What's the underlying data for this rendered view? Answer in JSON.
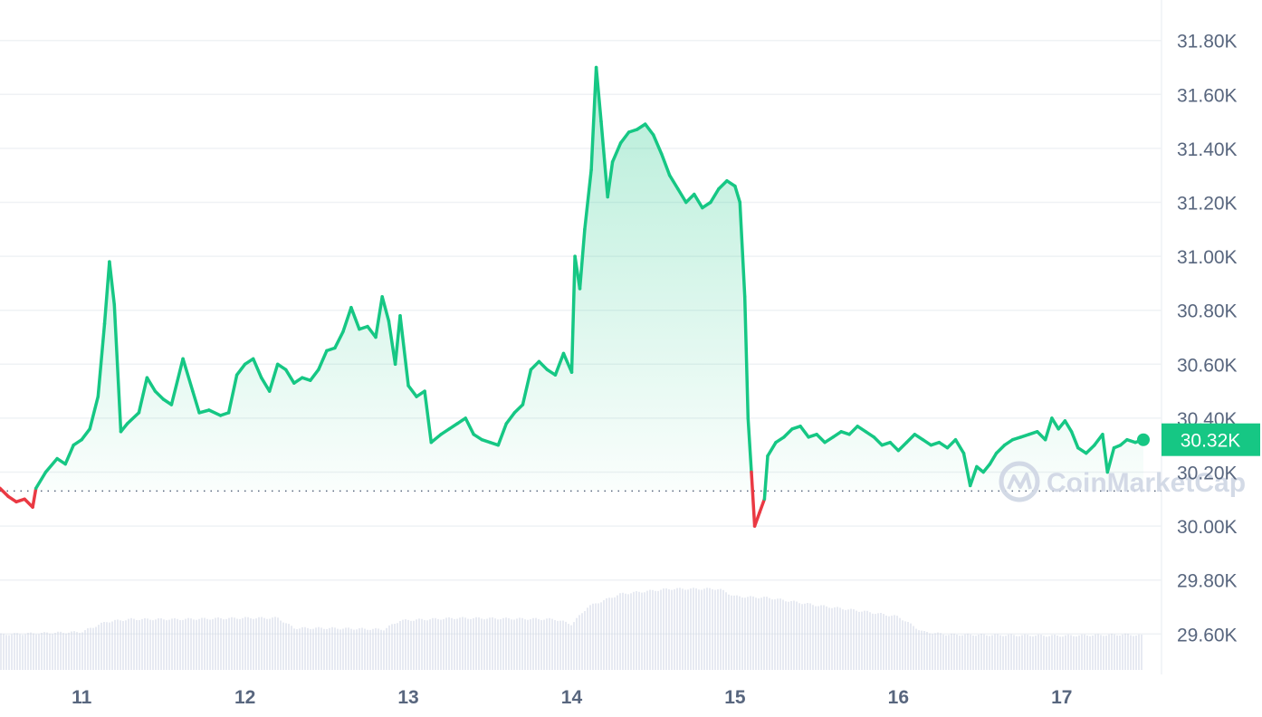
{
  "chart_data": {
    "type": "area",
    "y_ticks": [
      "31.80K",
      "31.60K",
      "31.40K",
      "31.20K",
      "31.00K",
      "30.80K",
      "30.60K",
      "30.40K",
      "30.20K",
      "30.00K",
      "29.80K",
      "29.60K"
    ],
    "x_ticks": [
      "11",
      "12",
      "13",
      "14",
      "15",
      "16",
      "17"
    ],
    "ylim": [
      29450,
      31950
    ],
    "xlim": [
      10.5,
      17.55
    ],
    "baseline": 30130,
    "current_price_label": "30.32K",
    "current_price": 30320,
    "colors": {
      "up": "#16c784",
      "down": "#ea3943",
      "grid": "#eff2f5",
      "text": "#58667e",
      "volume": "#cfd6e4"
    },
    "watermark": "CoinMarketCap",
    "series": [
      {
        "values": [
          [
            10.5,
            30140
          ],
          [
            10.55,
            30110
          ],
          [
            10.6,
            30090
          ],
          [
            10.65,
            30100
          ],
          [
            10.7,
            30070
          ],
          [
            10.72,
            30140
          ],
          [
            10.78,
            30200
          ],
          [
            10.85,
            30250
          ],
          [
            10.9,
            30230
          ],
          [
            10.95,
            30300
          ],
          [
            11.0,
            30320
          ],
          [
            11.05,
            30360
          ],
          [
            11.1,
            30480
          ],
          [
            11.14,
            30750
          ],
          [
            11.17,
            30980
          ],
          [
            11.2,
            30820
          ],
          [
            11.24,
            30350
          ],
          [
            11.28,
            30380
          ],
          [
            11.35,
            30420
          ],
          [
            11.4,
            30550
          ],
          [
            11.45,
            30500
          ],
          [
            11.5,
            30470
          ],
          [
            11.55,
            30450
          ],
          [
            11.62,
            30620
          ],
          [
            11.68,
            30500
          ],
          [
            11.72,
            30420
          ],
          [
            11.78,
            30430
          ],
          [
            11.85,
            30410
          ],
          [
            11.9,
            30420
          ],
          [
            11.95,
            30560
          ],
          [
            12.0,
            30600
          ],
          [
            12.05,
            30620
          ],
          [
            12.1,
            30550
          ],
          [
            12.15,
            30500
          ],
          [
            12.2,
            30600
          ],
          [
            12.25,
            30580
          ],
          [
            12.3,
            30530
          ],
          [
            12.35,
            30550
          ],
          [
            12.4,
            30540
          ],
          [
            12.45,
            30580
          ],
          [
            12.5,
            30650
          ],
          [
            12.55,
            30660
          ],
          [
            12.6,
            30720
          ],
          [
            12.65,
            30810
          ],
          [
            12.7,
            30730
          ],
          [
            12.75,
            30740
          ],
          [
            12.8,
            30700
          ],
          [
            12.84,
            30850
          ],
          [
            12.88,
            30760
          ],
          [
            12.92,
            30600
          ],
          [
            12.95,
            30780
          ],
          [
            13.0,
            30520
          ],
          [
            13.05,
            30480
          ],
          [
            13.1,
            30500
          ],
          [
            13.14,
            30310
          ],
          [
            13.2,
            30340
          ],
          [
            13.25,
            30360
          ],
          [
            13.3,
            30380
          ],
          [
            13.35,
            30400
          ],
          [
            13.4,
            30340
          ],
          [
            13.45,
            30320
          ],
          [
            13.5,
            30310
          ],
          [
            13.55,
            30300
          ],
          [
            13.6,
            30380
          ],
          [
            13.65,
            30420
          ],
          [
            13.7,
            30450
          ],
          [
            13.75,
            30580
          ],
          [
            13.8,
            30610
          ],
          [
            13.85,
            30580
          ],
          [
            13.9,
            30560
          ],
          [
            13.95,
            30640
          ],
          [
            14.0,
            30570
          ],
          [
            14.02,
            31000
          ],
          [
            14.05,
            30880
          ],
          [
            14.08,
            31100
          ],
          [
            14.12,
            31320
          ],
          [
            14.15,
            31700
          ],
          [
            14.18,
            31500
          ],
          [
            14.22,
            31220
          ],
          [
            14.25,
            31350
          ],
          [
            14.3,
            31420
          ],
          [
            14.35,
            31460
          ],
          [
            14.4,
            31470
          ],
          [
            14.45,
            31490
          ],
          [
            14.5,
            31450
          ],
          [
            14.55,
            31380
          ],
          [
            14.6,
            31300
          ],
          [
            14.65,
            31250
          ],
          [
            14.7,
            31200
          ],
          [
            14.75,
            31230
          ],
          [
            14.8,
            31180
          ],
          [
            14.85,
            31200
          ],
          [
            14.9,
            31250
          ],
          [
            14.95,
            31280
          ],
          [
            15.0,
            31260
          ],
          [
            15.03,
            31200
          ],
          [
            15.06,
            30850
          ],
          [
            15.08,
            30400
          ],
          [
            15.1,
            30200
          ],
          [
            15.12,
            30000
          ],
          [
            15.15,
            30050
          ],
          [
            15.18,
            30100
          ],
          [
            15.2,
            30260
          ],
          [
            15.25,
            30310
          ],
          [
            15.3,
            30330
          ],
          [
            15.35,
            30360
          ],
          [
            15.4,
            30370
          ],
          [
            15.45,
            30330
          ],
          [
            15.5,
            30340
          ],
          [
            15.55,
            30310
          ],
          [
            15.6,
            30330
          ],
          [
            15.65,
            30350
          ],
          [
            15.7,
            30340
          ],
          [
            15.75,
            30370
          ],
          [
            15.8,
            30350
          ],
          [
            15.85,
            30330
          ],
          [
            15.9,
            30300
          ],
          [
            15.95,
            30310
          ],
          [
            16.0,
            30280
          ],
          [
            16.05,
            30310
          ],
          [
            16.1,
            30340
          ],
          [
            16.15,
            30320
          ],
          [
            16.2,
            30300
          ],
          [
            16.25,
            30310
          ],
          [
            16.3,
            30290
          ],
          [
            16.35,
            30320
          ],
          [
            16.4,
            30270
          ],
          [
            16.44,
            30150
          ],
          [
            16.48,
            30220
          ],
          [
            16.52,
            30200
          ],
          [
            16.56,
            30230
          ],
          [
            16.6,
            30270
          ],
          [
            16.65,
            30300
          ],
          [
            16.7,
            30320
          ],
          [
            16.75,
            30330
          ],
          [
            16.8,
            30340
          ],
          [
            16.85,
            30350
          ],
          [
            16.9,
            30320
          ],
          [
            16.94,
            30400
          ],
          [
            16.98,
            30360
          ],
          [
            17.02,
            30390
          ],
          [
            17.06,
            30350
          ],
          [
            17.1,
            30290
          ],
          [
            17.15,
            30270
          ],
          [
            17.2,
            30300
          ],
          [
            17.25,
            30340
          ],
          [
            17.28,
            30200
          ],
          [
            17.32,
            30290
          ],
          [
            17.36,
            30300
          ],
          [
            17.4,
            30320
          ],
          [
            17.45,
            30310
          ],
          [
            17.5,
            30320
          ]
        ]
      }
    ],
    "volume": [
      [
        10.5,
        0.28
      ],
      [
        11.0,
        0.3
      ],
      [
        11.15,
        0.38
      ],
      [
        11.3,
        0.4
      ],
      [
        11.6,
        0.4
      ],
      [
        12.0,
        0.41
      ],
      [
        12.2,
        0.41
      ],
      [
        12.3,
        0.33
      ],
      [
        12.5,
        0.33
      ],
      [
        12.85,
        0.32
      ],
      [
        12.95,
        0.39
      ],
      [
        13.3,
        0.41
      ],
      [
        13.9,
        0.4
      ],
      [
        14.0,
        0.36
      ],
      [
        14.1,
        0.5
      ],
      [
        14.3,
        0.6
      ],
      [
        14.6,
        0.64
      ],
      [
        14.9,
        0.64
      ],
      [
        15.0,
        0.58
      ],
      [
        15.2,
        0.57
      ],
      [
        15.5,
        0.51
      ],
      [
        15.8,
        0.46
      ],
      [
        16.0,
        0.42
      ],
      [
        16.15,
        0.3
      ],
      [
        16.3,
        0.28
      ],
      [
        17.0,
        0.27
      ],
      [
        17.4,
        0.28
      ],
      [
        17.5,
        0.27
      ]
    ]
  }
}
